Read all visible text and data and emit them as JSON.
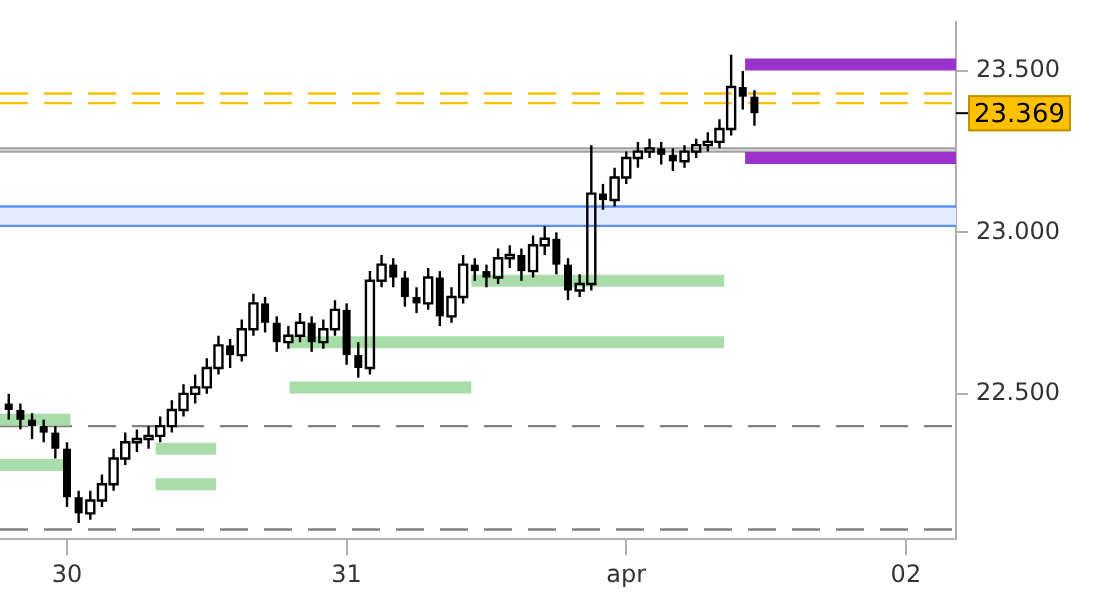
{
  "chart_data": {
    "type": "candlestick",
    "x": [
      "--03-29T19:00",
      "--03-29T20:00",
      "--03-29T21:00",
      "--03-29T22:00",
      "--03-29T23:00",
      "--03-30T00:00",
      "--03-30T01:00",
      "--03-30T02:00",
      "--03-30T03:00",
      "--03-30T04:00",
      "--03-30T05:00",
      "--03-30T06:00",
      "--03-30T07:00",
      "--03-30T08:00",
      "--03-30T09:00",
      "--03-30T10:00",
      "--03-30T11:00",
      "--03-30T12:00",
      "--03-30T13:00",
      "--03-30T14:00",
      "--03-30T15:00",
      "--03-30T16:00",
      "--03-30T17:00",
      "--03-30T18:00",
      "--03-30T19:00",
      "--03-30T20:00",
      "--03-30T21:00",
      "--03-30T22:00",
      "--03-30T23:00",
      "--03-31T00:00",
      "--03-31T01:00",
      "--03-31T02:00",
      "--03-31T03:00",
      "--03-31T04:00",
      "--03-31T05:00",
      "--03-31T06:00",
      "--03-31T07:00",
      "--03-31T08:00",
      "--03-31T09:00",
      "--03-31T10:00",
      "--03-31T11:00",
      "--03-31T12:00",
      "--03-31T13:00",
      "--03-31T14:00",
      "--03-31T15:00",
      "--03-31T16:00",
      "--03-31T17:00",
      "--03-31T18:00",
      "--03-31T19:00",
      "--03-31T20:00",
      "--03-31T21:00",
      "--03-31T22:00",
      "--03-31T23:00",
      "--04-01T00:00",
      "--04-01T01:00",
      "--04-01T02:00",
      "--04-01T03:00",
      "--04-01T04:00",
      "--04-01T05:00",
      "--04-01T06:00",
      "--04-01T07:00",
      "--04-01T08:00",
      "--04-01T09:00",
      "--04-01T10:00",
      "--04-01T11:00"
    ],
    "ohlc": [
      [
        22.47,
        22.5,
        22.42,
        22.45
      ],
      [
        22.45,
        22.47,
        22.39,
        22.42
      ],
      [
        22.42,
        22.44,
        22.36,
        22.4
      ],
      [
        22.4,
        22.42,
        22.35,
        22.38
      ],
      [
        22.38,
        22.4,
        22.3,
        22.33
      ],
      [
        22.33,
        22.35,
        22.15,
        22.18
      ],
      [
        22.18,
        22.2,
        22.1,
        22.13
      ],
      [
        22.13,
        22.2,
        22.11,
        22.17
      ],
      [
        22.17,
        22.25,
        22.15,
        22.22
      ],
      [
        22.22,
        22.33,
        22.2,
        22.3
      ],
      [
        22.3,
        22.38,
        22.28,
        22.35
      ],
      [
        22.35,
        22.39,
        22.32,
        22.36
      ],
      [
        22.36,
        22.4,
        22.33,
        22.37
      ],
      [
        22.37,
        22.43,
        22.35,
        22.4
      ],
      [
        22.4,
        22.48,
        22.38,
        22.45
      ],
      [
        22.45,
        22.53,
        22.43,
        22.5
      ],
      [
        22.5,
        22.56,
        22.47,
        22.52
      ],
      [
        22.52,
        22.61,
        22.5,
        22.58
      ],
      [
        22.58,
        22.68,
        22.56,
        22.65
      ],
      [
        22.65,
        22.67,
        22.58,
        22.62
      ],
      [
        22.62,
        22.73,
        22.6,
        22.7
      ],
      [
        22.7,
        22.81,
        22.68,
        22.78
      ],
      [
        22.78,
        22.8,
        22.69,
        22.72
      ],
      [
        22.72,
        22.74,
        22.63,
        22.66
      ],
      [
        22.66,
        22.71,
        22.64,
        22.68
      ],
      [
        22.68,
        22.75,
        22.66,
        22.72
      ],
      [
        22.72,
        22.74,
        22.63,
        22.66
      ],
      [
        22.66,
        22.73,
        22.64,
        22.7
      ],
      [
        22.7,
        22.79,
        22.68,
        22.76
      ],
      [
        22.76,
        22.78,
        22.59,
        22.62
      ],
      [
        22.62,
        22.66,
        22.55,
        22.58
      ],
      [
        22.58,
        22.88,
        22.56,
        22.85
      ],
      [
        22.85,
        22.93,
        22.83,
        22.9
      ],
      [
        22.9,
        22.92,
        22.83,
        22.86
      ],
      [
        22.86,
        22.88,
        22.77,
        22.8
      ],
      [
        22.8,
        22.83,
        22.75,
        22.78
      ],
      [
        22.78,
        22.89,
        22.76,
        22.86
      ],
      [
        22.86,
        22.88,
        22.71,
        22.74
      ],
      [
        22.74,
        22.83,
        22.72,
        22.8
      ],
      [
        22.8,
        22.93,
        22.78,
        22.9
      ],
      [
        22.9,
        22.92,
        22.85,
        22.88
      ],
      [
        22.88,
        22.9,
        22.83,
        22.86
      ],
      [
        22.86,
        22.95,
        22.84,
        22.92
      ],
      [
        22.92,
        22.96,
        22.89,
        22.93
      ],
      [
        22.93,
        22.95,
        22.85,
        22.88
      ],
      [
        22.88,
        22.99,
        22.86,
        22.96
      ],
      [
        22.96,
        23.02,
        22.93,
        22.98
      ],
      [
        22.98,
        23.0,
        22.87,
        22.9
      ],
      [
        22.9,
        22.92,
        22.79,
        22.82
      ],
      [
        22.82,
        22.87,
        22.8,
        22.84
      ],
      [
        22.84,
        23.27,
        22.82,
        23.12
      ],
      [
        23.12,
        23.15,
        23.07,
        23.1
      ],
      [
        23.1,
        23.2,
        23.08,
        23.17
      ],
      [
        23.17,
        23.25,
        23.15,
        23.23
      ],
      [
        23.23,
        23.28,
        23.2,
        23.25
      ],
      [
        23.25,
        23.29,
        23.23,
        23.26
      ],
      [
        23.26,
        23.28,
        23.21,
        23.24
      ],
      [
        23.24,
        23.26,
        23.19,
        23.22
      ],
      [
        23.22,
        23.27,
        23.2,
        23.25
      ],
      [
        23.25,
        23.29,
        23.23,
        23.27
      ],
      [
        23.27,
        23.31,
        23.25,
        23.28
      ],
      [
        23.28,
        23.35,
        23.26,
        23.32
      ],
      [
        23.32,
        23.55,
        23.3,
        23.45
      ],
      [
        23.45,
        23.5,
        23.38,
        23.42
      ],
      [
        23.42,
        23.44,
        23.33,
        23.369
      ]
    ],
    "color": "#000000",
    "series": [
      {
        "type": "line",
        "color": "#a8dca8",
        "x": [
          "--03-29T18:15",
          "--03-30T00:18"
        ],
        "values": [
          22.42,
          22.42
        ]
      },
      {
        "type": "line",
        "color": "#a8dca8",
        "x": [
          "--03-29T18:15",
          "--03-30T00:00"
        ],
        "values": [
          22.28,
          22.28
        ]
      },
      {
        "type": "line",
        "color": "#a8dca8",
        "x": [
          "--03-30T07:36",
          "--03-30T12:48"
        ],
        "values": [
          22.33,
          22.33
        ]
      },
      {
        "type": "line",
        "color": "#a8dca8",
        "x": [
          "--03-30T07:36",
          "--03-30T12:48"
        ],
        "values": [
          22.22,
          22.22
        ]
      },
      {
        "type": "line",
        "color": "#a8dca8",
        "x": [
          "--03-30T19:06",
          "--04-01T08:24"
        ],
        "values": [
          22.66,
          22.66
        ]
      },
      {
        "type": "line",
        "color": "#a8dca8",
        "x": [
          "--03-30T19:06",
          "--03-31T10:42"
        ],
        "values": [
          22.52,
          22.52
        ]
      },
      {
        "type": "line",
        "color": "#a8dca8",
        "x": [
          "--03-31T10:42",
          "--04-01T08:24"
        ],
        "values": [
          22.85,
          22.85
        ]
      },
      {
        "type": "line",
        "color": "#9933cc",
        "x": [
          "--04-01T10:12",
          "--04-02T04:18"
        ],
        "values": [
          23.52,
          23.52
        ]
      },
      {
        "type": "line",
        "color": "#9933cc",
        "x": [
          "--04-01T10:12",
          "--04-02T04:18"
        ],
        "values": [
          23.23,
          23.23
        ]
      }
    ],
    "ref_lines": [
      {
        "axis": "y",
        "value": 22.4,
        "color": "#808080",
        "line_style": "dashed"
      },
      {
        "axis": "y",
        "value": 22.08,
        "color": "#808080",
        "line_style": "dashed"
      },
      {
        "axis": "y",
        "value": 23.43,
        "color": "#ffc000",
        "line_style": "dashed"
      },
      {
        "axis": "y",
        "value": 23.4,
        "color": "#ffc000",
        "line_style": "dashed"
      },
      {
        "axis": "y",
        "value": 23.26,
        "color": "#a0a0a0",
        "line_style": "solid"
      },
      {
        "axis": "y",
        "value": 23.25,
        "color": "#a0a0a0",
        "line_style": "solid"
      },
      {
        "axis": "y",
        "value": 23.02,
        "color": "#5b8ff9",
        "line_style": "solid"
      },
      {
        "axis": "y",
        "value": 23.08,
        "color": "#5b8ff9",
        "line_style": "solid"
      }
    ],
    "bands": [
      {
        "axis": "y",
        "from": 23.02,
        "to": 23.08,
        "color": "#e6ecfe"
      }
    ],
    "annotations": [
      "23.369"
    ],
    "xlim": [
      "--03-29T18:15",
      "--04-02T04:18"
    ],
    "xticks": [
      {
        "value": "--03-30",
        "label": "30"
      },
      {
        "value": "--03-31",
        "label": "31"
      },
      {
        "value": "--04-01",
        "label": "apr"
      },
      {
        "value": "--04-02",
        "label": "02"
      }
    ],
    "ylim": [
      22.05,
      23.65
    ],
    "yticks": [
      {
        "value": 22.5,
        "label": "22.500"
      },
      {
        "value": 23,
        "label": "23.000"
      },
      {
        "value": 23.5,
        "label": "23.500"
      }
    ],
    "grid": false,
    "legend": false
  }
}
